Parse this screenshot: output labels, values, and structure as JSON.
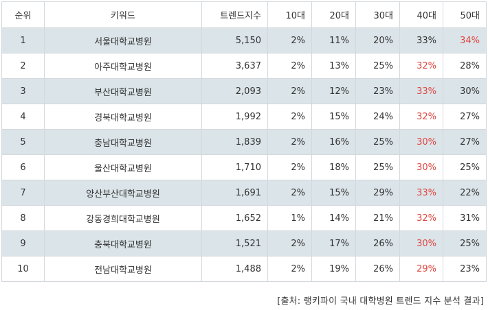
{
  "table": {
    "headers": {
      "rank": "순위",
      "keyword": "키워드",
      "trend_index": "트렌드지수",
      "age10": "10대",
      "age20": "20대",
      "age30": "30대",
      "age40": "40대",
      "age50": "50대"
    },
    "highlight_color": "#e0463f",
    "stripe_color": "#dbe4e9",
    "rows": [
      {
        "rank": "1",
        "keyword": "서울대학교병원",
        "trend_index": "5,150",
        "age10": "2%",
        "age20": "11%",
        "age30": "20%",
        "age40": "33%",
        "age50": "34%",
        "highlight": "age50"
      },
      {
        "rank": "2",
        "keyword": "아주대학교병원",
        "trend_index": "3,637",
        "age10": "2%",
        "age20": "13%",
        "age30": "25%",
        "age40": "32%",
        "age50": "28%",
        "highlight": "age40"
      },
      {
        "rank": "3",
        "keyword": "부산대학교병원",
        "trend_index": "2,093",
        "age10": "2%",
        "age20": "12%",
        "age30": "23%",
        "age40": "33%",
        "age50": "30%",
        "highlight": "age40"
      },
      {
        "rank": "4",
        "keyword": "경북대학교병원",
        "trend_index": "1,992",
        "age10": "2%",
        "age20": "15%",
        "age30": "24%",
        "age40": "32%",
        "age50": "27%",
        "highlight": "age40"
      },
      {
        "rank": "5",
        "keyword": "충남대학교병원",
        "trend_index": "1,839",
        "age10": "2%",
        "age20": "16%",
        "age30": "25%",
        "age40": "30%",
        "age50": "27%",
        "highlight": "age40"
      },
      {
        "rank": "6",
        "keyword": "울산대학교병원",
        "trend_index": "1,710",
        "age10": "2%",
        "age20": "18%",
        "age30": "25%",
        "age40": "30%",
        "age50": "25%",
        "highlight": "age40"
      },
      {
        "rank": "7",
        "keyword": "양산부산대학교병원",
        "trend_index": "1,691",
        "age10": "2%",
        "age20": "15%",
        "age30": "29%",
        "age40": "33%",
        "age50": "22%",
        "highlight": "age40"
      },
      {
        "rank": "8",
        "keyword": "강동경희대학교병원",
        "trend_index": "1,652",
        "age10": "1%",
        "age20": "14%",
        "age30": "21%",
        "age40": "32%",
        "age50": "31%",
        "highlight": "age40"
      },
      {
        "rank": "9",
        "keyword": "충북대학교병원",
        "trend_index": "1,521",
        "age10": "2%",
        "age20": "17%",
        "age30": "26%",
        "age40": "30%",
        "age50": "25%",
        "highlight": "age40"
      },
      {
        "rank": "10",
        "keyword": "전남대학교병원",
        "trend_index": "1,488",
        "age10": "2%",
        "age20": "19%",
        "age30": "26%",
        "age40": "29%",
        "age50": "23%",
        "highlight": "age40"
      }
    ]
  },
  "source": "[출처: 랭키파이 국내 대학병원 트렌드 지수 분석 결과]"
}
